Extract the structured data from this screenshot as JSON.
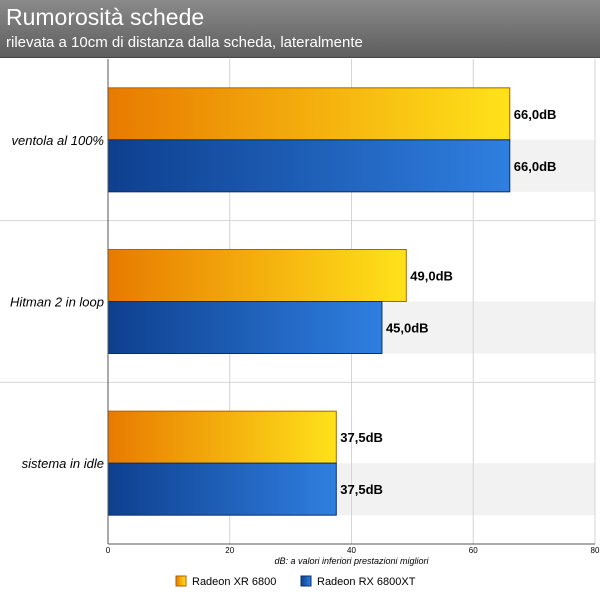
{
  "chart_data": {
    "type": "bar",
    "orientation": "horizontal",
    "title": "Rumorosità schede",
    "subtitle": "rilevata a 10cm di distanza dalla scheda, lateralmente",
    "xlabel": "dB: a valori inferiori prestazioni migliori",
    "categories": [
      "ventola al 100%",
      "Hitman 2 in loop",
      "sistema in idle"
    ],
    "series": [
      {
        "name": "Radeon XR 6800",
        "values": [
          66.0,
          49.0,
          37.5
        ],
        "labels": [
          "66,0dB",
          "49,0dB",
          "37,5dB"
        ],
        "color": "#f5a800"
      },
      {
        "name": "Radeon RX 6800XT",
        "values": [
          66.0,
          45.0,
          37.5
        ],
        "labels": [
          "66,0dB",
          "45,0dB",
          "37,5dB"
        ],
        "color": "#1f5fb5"
      }
    ],
    "xlim": [
      0,
      80
    ],
    "xticks": [
      0,
      20,
      40,
      60,
      80
    ],
    "grid": true,
    "legend": "bottom"
  }
}
